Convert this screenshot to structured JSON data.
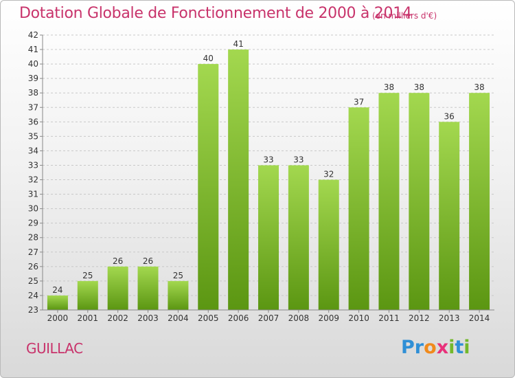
{
  "title": "Dotation Globale de Fonctionnement de 2000 à 2014",
  "subtitle": "(en milliers d'€)",
  "commune": "GUILLAC",
  "logo_text": "Proxiti",
  "colors": {
    "title": "#c8336b",
    "bar_light": "#9ed64a",
    "bar_dark": "#5e9a12",
    "grid": "#c8c8c8"
  },
  "chart_data": {
    "type": "bar",
    "categories": [
      "2000",
      "2001",
      "2002",
      "2003",
      "2004",
      "2005",
      "2006",
      "2007",
      "2008",
      "2009",
      "2010",
      "2011",
      "2012",
      "2013",
      "2014"
    ],
    "values": [
      24,
      25,
      26,
      26,
      25,
      40,
      41,
      33,
      33,
      32,
      37,
      38,
      38,
      36,
      38
    ],
    "ylim": [
      23,
      42
    ],
    "yticks": [
      23,
      24,
      25,
      26,
      27,
      28,
      29,
      30,
      31,
      32,
      33,
      34,
      35,
      36,
      37,
      38,
      39,
      40,
      41,
      42
    ],
    "grid": true,
    "data_labels": true
  }
}
